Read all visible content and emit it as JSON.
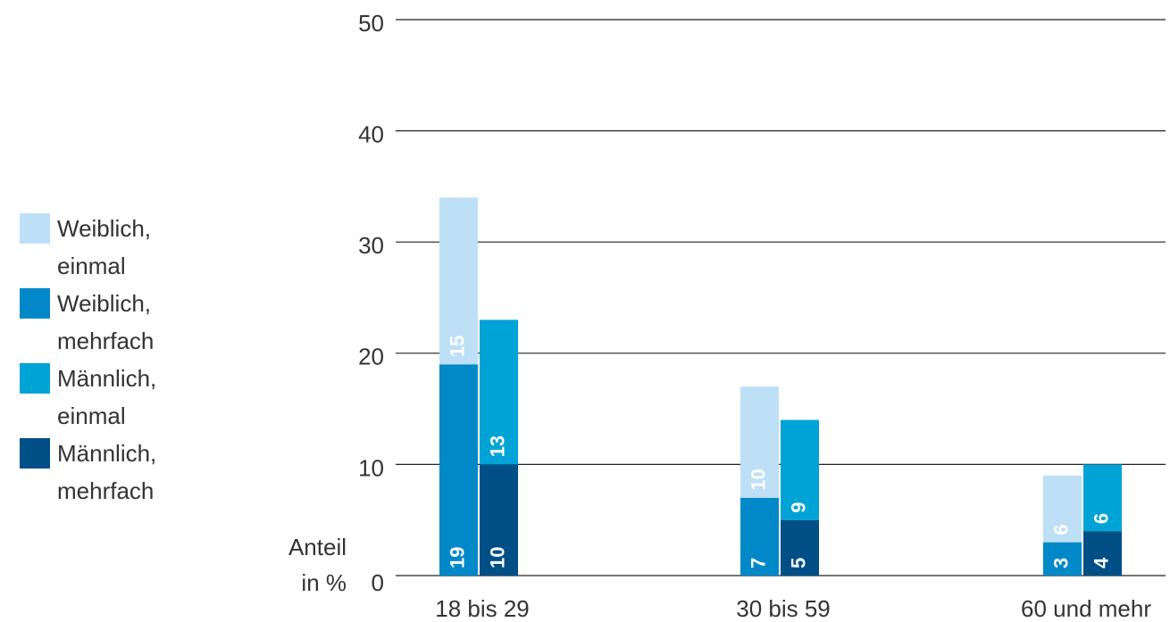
{
  "chart_data": {
    "type": "bar",
    "y_label": [
      "Anteil",
      "in %"
    ],
    "categories": [
      "18 bis 29",
      "30 bis 59",
      "60 und mehr"
    ],
    "series": [
      {
        "name": "Weiblich, einmal",
        "color": "#bde0f7",
        "values": [
          15,
          10,
          6
        ]
      },
      {
        "name": "Weiblich, mehrfach",
        "color": "#0088c8",
        "values": [
          19,
          7,
          3
        ]
      },
      {
        "name": "Männlich, einmal",
        "color": "#00a3d6",
        "values": [
          13,
          9,
          6
        ]
      },
      {
        "name": "Männlich, mehrfach",
        "color": "#004f87",
        "values": [
          10,
          5,
          4
        ]
      }
    ],
    "ylim": [
      0,
      50
    ],
    "yticks": [
      0,
      10,
      20,
      30,
      40,
      50
    ],
    "grid": true,
    "legend": "left"
  }
}
